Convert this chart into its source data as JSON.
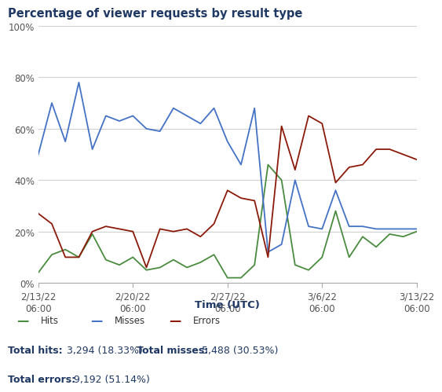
{
  "title": "Percentage of viewer requests by result type",
  "xlabel": "Time (UTC)",
  "ylim": [
    0,
    100
  ],
  "tick_dates": [
    "2/13/22\n06:00",
    "2/20/22\n06:00",
    "2/27/22\n06:00",
    "3/6/22\n06:00",
    "3/13/22\n06:00"
  ],
  "tick_positions": [
    0,
    7,
    14,
    21,
    28
  ],
  "hits": {
    "x": [
      0,
      1,
      2,
      3,
      4,
      5,
      6,
      7,
      8,
      9,
      10,
      11,
      12,
      13,
      14,
      15,
      16,
      17,
      18,
      19,
      20,
      21,
      22,
      23,
      24,
      25,
      26,
      27,
      28
    ],
    "y": [
      4,
      11,
      13,
      10,
      19,
      9,
      7,
      10,
      5,
      6,
      9,
      6,
      8,
      11,
      2,
      2,
      7,
      46,
      40,
      7,
      5,
      10,
      28,
      10,
      18,
      14,
      19,
      18,
      20
    ],
    "color": "#4a8c3f",
    "label": "Hits"
  },
  "misses": {
    "x": [
      0,
      1,
      2,
      3,
      4,
      5,
      6,
      7,
      8,
      9,
      10,
      11,
      12,
      13,
      14,
      15,
      16,
      17,
      18,
      19,
      20,
      21,
      22,
      23,
      24,
      25,
      26,
      27,
      28
    ],
    "y": [
      50,
      70,
      55,
      78,
      52,
      65,
      63,
      65,
      60,
      59,
      68,
      65,
      62,
      68,
      55,
      46,
      68,
      12,
      15,
      40,
      22,
      21,
      36,
      22,
      22,
      21,
      21,
      21,
      21
    ],
    "color": "#4472c4",
    "label": "Misses"
  },
  "errors": {
    "x": [
      0,
      1,
      2,
      3,
      4,
      5,
      6,
      7,
      8,
      9,
      10,
      11,
      12,
      13,
      14,
      15,
      16,
      17,
      18,
      19,
      20,
      21,
      22,
      23,
      24,
      25,
      26,
      27,
      28
    ],
    "y": [
      27,
      23,
      10,
      10,
      20,
      22,
      21,
      20,
      6,
      21,
      20,
      21,
      18,
      23,
      36,
      33,
      32,
      10,
      61,
      44,
      65,
      62,
      39,
      45,
      46,
      52,
      52,
      50,
      48
    ],
    "color": "#8b1a0a",
    "label": "Errors"
  },
  "ann1_bold": "Total hits:",
  "ann1_val": " 3,294 (18.33%)",
  "ann1_bold2": "   Total misses:",
  "ann1_val2": " 5,488 (30.53%)",
  "ann2_bold": "Total errors:",
  "ann2_val": " 9,192 (51.14%)",
  "legend_items": [
    "Hits",
    "Misses",
    "Errors"
  ],
  "legend_colors": [
    "#4a8c3f",
    "#4472c4",
    "#8b1a0a"
  ],
  "title_color": "#1f3864",
  "text_color": "#1f3864",
  "background_color": "#ffffff",
  "grid_color": "#d0d0d0",
  "title_fontsize": 10.5,
  "axis_fontsize": 8.5,
  "annotation_fontsize": 9
}
